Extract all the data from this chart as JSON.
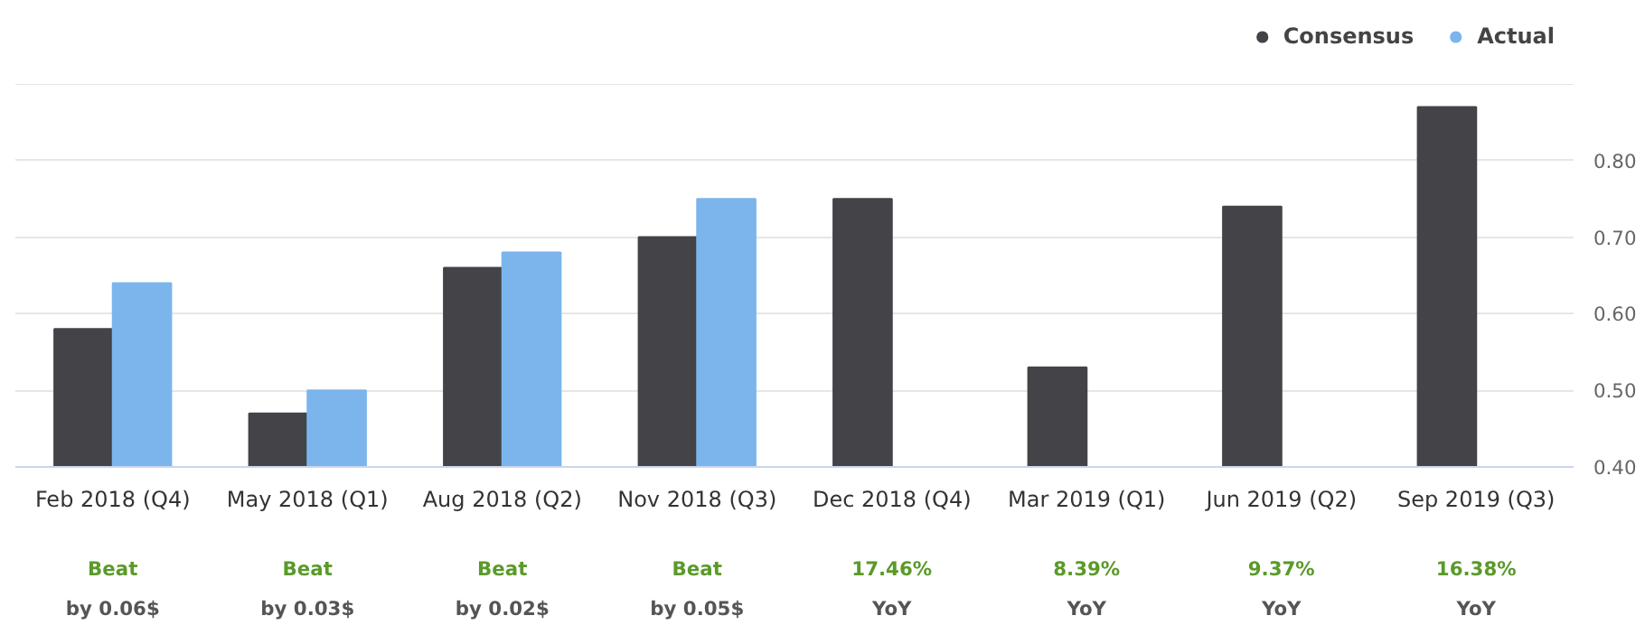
{
  "chart_data": {
    "type": "bar",
    "categories": [
      "Feb 2018 (Q4)",
      "May 2018 (Q1)",
      "Aug 2018 (Q2)",
      "Nov 2018 (Q3)",
      "Dec 2018 (Q4)",
      "Mar 2019 (Q1)",
      "Jun 2019 (Q2)",
      "Sep 2019 (Q3)"
    ],
    "series": [
      {
        "name": "Consensus",
        "color": "#434348",
        "values": [
          0.58,
          0.47,
          0.66,
          0.7,
          0.75,
          0.53,
          0.74,
          0.87
        ]
      },
      {
        "name": "Actual",
        "color": "#7cb5ec",
        "values": [
          0.64,
          0.5,
          0.68,
          0.75,
          null,
          null,
          null,
          null
        ]
      }
    ],
    "ylim": [
      0.4,
      0.9
    ],
    "yticks": [
      {
        "value": 0.4,
        "label": "0.40"
      },
      {
        "value": 0.5,
        "label": "0.50"
      },
      {
        "value": 0.6,
        "label": "0.60"
      },
      {
        "value": 0.7,
        "label": "0.70"
      },
      {
        "value": 0.8,
        "label": "0.80"
      },
      {
        "value": 0.9,
        "label": null
      }
    ],
    "grid": "y",
    "legend": "top right",
    "annotations": [
      "Beat",
      "by 0.06$",
      "Beat",
      "by 0.03$",
      "Beat",
      "by 0.02$",
      "Beat",
      "by 0.05$",
      "17.46%",
      "YoY",
      "8.39%",
      "YoY",
      "9.37%",
      "YoY",
      "16.38%",
      "YoY"
    ]
  }
}
